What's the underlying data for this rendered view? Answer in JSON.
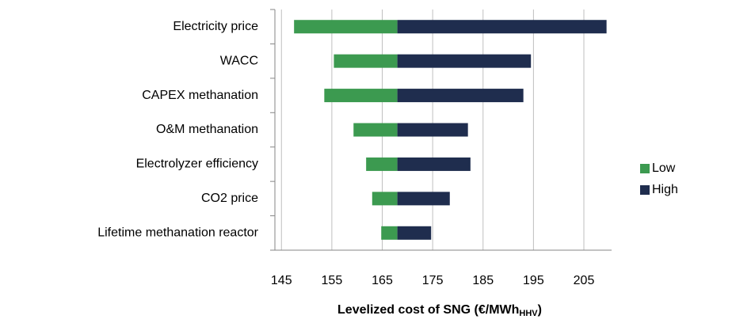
{
  "chart_data": {
    "type": "tornado",
    "categories": [
      "Electricity price",
      "WACC",
      "CAPEX methanation",
      "O&M methanation",
      "Electrolyzer efficiency",
      "CO2 price",
      "Lifetime methanation  reactor"
    ],
    "base": 168,
    "series": [
      {
        "name": "Low",
        "color": "#3c9a50",
        "values": [
          147.5,
          155.4,
          153.5,
          159.3,
          161.8,
          163,
          164.8
        ]
      },
      {
        "name": "High",
        "color": "#1f2d4e",
        "values": [
          209.5,
          194.5,
          193,
          182,
          182.5,
          178.4,
          174.7
        ]
      }
    ],
    "xlim": [
      143.7,
      210.5
    ],
    "xticks": [
      145,
      155,
      165,
      175,
      185,
      195,
      205
    ],
    "xlabel": [
      "Levelized cost  of SNG (€/MWh",
      "HHV",
      ")"
    ],
    "grid": true,
    "legend": "right"
  }
}
